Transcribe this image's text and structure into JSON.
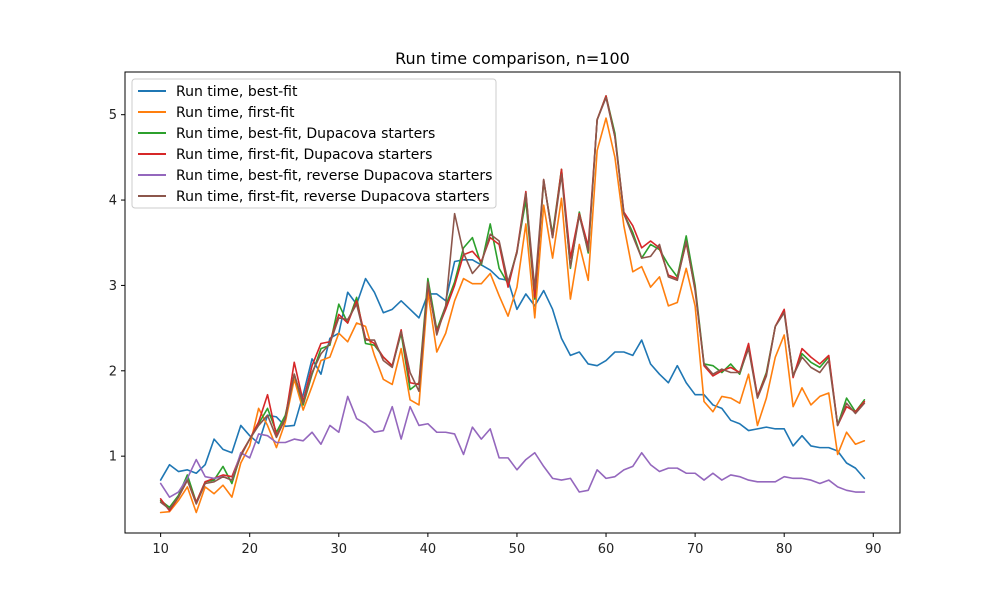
{
  "chart_data": {
    "type": "line",
    "title": "Run time comparison, n=100",
    "xlabel": "",
    "ylabel": "",
    "xlim": [
      6,
      93
    ],
    "ylim": [
      0.1,
      5.5
    ],
    "xticks": [
      10,
      20,
      30,
      40,
      50,
      60,
      70,
      80,
      90
    ],
    "yticks": [
      1,
      2,
      3,
      4,
      5
    ],
    "grid": false,
    "legend_position": "top-left",
    "x": [
      10,
      11,
      12,
      13,
      14,
      15,
      16,
      17,
      18,
      19,
      20,
      21,
      22,
      23,
      24,
      25,
      26,
      27,
      28,
      29,
      30,
      31,
      32,
      33,
      34,
      35,
      36,
      37,
      38,
      39,
      40,
      41,
      42,
      43,
      44,
      45,
      46,
      47,
      48,
      49,
      50,
      51,
      52,
      53,
      54,
      55,
      56,
      57,
      58,
      59,
      60,
      61,
      62,
      63,
      64,
      65,
      66,
      67,
      68,
      69,
      70,
      71,
      72,
      73,
      74,
      75,
      76,
      77,
      78,
      79,
      80,
      81,
      82,
      83,
      84,
      85,
      86,
      87,
      88,
      89
    ],
    "series": [
      {
        "name": "Run time, best-fit",
        "color": "#1f77b4",
        "values": [
          0.72,
          0.9,
          0.82,
          0.84,
          0.8,
          0.9,
          1.2,
          1.08,
          1.04,
          1.36,
          1.24,
          1.15,
          1.48,
          1.46,
          1.35,
          1.36,
          1.72,
          2.14,
          1.96,
          2.38,
          2.44,
          2.92,
          2.78,
          3.08,
          2.92,
          2.68,
          2.72,
          2.82,
          2.72,
          2.62,
          2.9,
          2.9,
          2.82,
          3.28,
          3.3,
          3.3,
          3.24,
          3.18,
          3.08,
          3.06,
          2.72,
          2.9,
          2.76,
          2.94,
          2.72,
          2.38,
          2.18,
          2.22,
          2.08,
          2.06,
          2.12,
          2.22,
          2.22,
          2.18,
          2.36,
          2.08,
          1.96,
          1.86,
          2.06,
          1.86,
          1.72,
          1.72,
          1.6,
          1.56,
          1.42,
          1.38,
          1.3,
          1.32,
          1.34,
          1.32,
          1.32,
          1.12,
          1.24,
          1.12,
          1.1,
          1.1,
          1.06,
          0.92,
          0.86,
          0.74
        ]
      },
      {
        "name": "Run time, first-fit",
        "color": "#ff7f0e",
        "values": [
          0.34,
          0.35,
          0.48,
          0.64,
          0.34,
          0.64,
          0.56,
          0.66,
          0.52,
          0.92,
          1.12,
          1.56,
          1.36,
          1.1,
          1.4,
          1.9,
          1.54,
          1.82,
          2.12,
          2.16,
          2.44,
          2.34,
          2.56,
          2.52,
          2.18,
          1.9,
          1.84,
          2.26,
          1.66,
          1.6,
          2.92,
          2.22,
          2.44,
          2.82,
          3.08,
          3.02,
          3.02,
          3.14,
          2.88,
          2.64,
          2.98,
          3.72,
          2.62,
          3.94,
          3.32,
          4.02,
          2.84,
          3.48,
          3.06,
          4.58,
          4.96,
          4.5,
          3.7,
          3.16,
          3.22,
          2.98,
          3.1,
          2.76,
          2.8,
          3.2,
          2.76,
          1.64,
          1.52,
          1.7,
          1.68,
          1.62,
          1.96,
          1.36,
          1.68,
          2.16,
          2.42,
          1.58,
          1.8,
          1.6,
          1.7,
          1.74,
          1.02,
          1.28,
          1.14,
          1.18
        ]
      },
      {
        "name": "Run time, best-fit, Dupacova starters",
        "color": "#2ca02c",
        "values": [
          0.48,
          0.4,
          0.54,
          0.78,
          0.46,
          0.7,
          0.72,
          0.88,
          0.68,
          1.02,
          1.2,
          1.38,
          1.56,
          1.28,
          1.48,
          1.96,
          1.6,
          1.96,
          2.26,
          2.3,
          2.78,
          2.56,
          2.86,
          2.32,
          2.3,
          2.16,
          2.06,
          2.44,
          1.78,
          1.86,
          3.08,
          2.48,
          2.76,
          3.04,
          3.44,
          3.56,
          3.24,
          3.72,
          3.2,
          3.02,
          3.4,
          4.0,
          2.84,
          4.22,
          3.6,
          4.36,
          3.2,
          3.86,
          3.38,
          4.94,
          5.22,
          4.78,
          3.84,
          3.62,
          3.32,
          3.48,
          3.42,
          3.24,
          3.1,
          3.58,
          3.0,
          2.08,
          2.06,
          1.98,
          2.08,
          1.96,
          2.28,
          1.7,
          1.98,
          2.52,
          2.7,
          1.94,
          2.2,
          2.1,
          2.04,
          2.16,
          1.36,
          1.68,
          1.52,
          1.66
        ]
      },
      {
        "name": "Run time, first-fit, Dupacova starters",
        "color": "#d62728",
        "values": [
          0.5,
          0.36,
          0.52,
          0.72,
          0.46,
          0.7,
          0.74,
          0.78,
          0.76,
          1.02,
          1.2,
          1.4,
          1.72,
          1.24,
          1.44,
          2.1,
          1.64,
          2.06,
          2.32,
          2.34,
          2.66,
          2.56,
          2.82,
          2.38,
          2.32,
          2.16,
          2.06,
          2.48,
          1.86,
          1.84,
          3.0,
          2.46,
          2.72,
          3.0,
          3.36,
          3.4,
          3.28,
          3.56,
          3.48,
          2.98,
          3.4,
          4.1,
          2.86,
          4.24,
          3.56,
          4.36,
          3.32,
          3.84,
          3.46,
          4.94,
          5.22,
          4.74,
          3.86,
          3.7,
          3.44,
          3.52,
          3.44,
          3.12,
          3.08,
          3.5,
          2.96,
          2.06,
          1.94,
          2.0,
          2.04,
          1.98,
          2.32,
          1.7,
          1.96,
          2.52,
          2.72,
          1.92,
          2.26,
          2.16,
          2.08,
          2.18,
          1.36,
          1.58,
          1.52,
          1.64
        ]
      },
      {
        "name": "Run time, best-fit, reverse Dupacova starters",
        "color": "#9467bd",
        "values": [
          0.68,
          0.52,
          0.58,
          0.74,
          0.96,
          0.76,
          0.74,
          0.76,
          0.72,
          1.04,
          0.98,
          1.26,
          1.24,
          1.16,
          1.16,
          1.2,
          1.18,
          1.28,
          1.14,
          1.36,
          1.28,
          1.7,
          1.44,
          1.38,
          1.28,
          1.3,
          1.58,
          1.2,
          1.58,
          1.36,
          1.38,
          1.28,
          1.28,
          1.26,
          1.02,
          1.34,
          1.2,
          1.32,
          0.98,
          0.98,
          0.84,
          0.96,
          1.04,
          0.88,
          0.74,
          0.72,
          0.74,
          0.58,
          0.6,
          0.84,
          0.74,
          0.76,
          0.84,
          0.88,
          1.04,
          0.9,
          0.82,
          0.86,
          0.86,
          0.8,
          0.8,
          0.72,
          0.8,
          0.72,
          0.78,
          0.76,
          0.72,
          0.7,
          0.7,
          0.7,
          0.76,
          0.74,
          0.74,
          0.72,
          0.68,
          0.72,
          0.64,
          0.6,
          0.58,
          0.58
        ]
      },
      {
        "name": "Run time, first-fit, reverse Dupacova starters",
        "color": "#8c564b",
        "values": [
          0.46,
          0.38,
          0.52,
          0.72,
          0.44,
          0.68,
          0.7,
          0.76,
          0.72,
          1.0,
          1.2,
          1.36,
          1.48,
          1.22,
          1.44,
          1.96,
          1.62,
          1.98,
          2.2,
          2.32,
          2.62,
          2.6,
          2.78,
          2.36,
          2.36,
          2.12,
          2.04,
          2.46,
          1.98,
          1.76,
          3.04,
          2.42,
          2.76,
          3.84,
          3.38,
          3.14,
          3.26,
          3.6,
          3.52,
          3.04,
          3.38,
          4.08,
          2.96,
          4.24,
          3.56,
          4.3,
          3.22,
          3.82,
          3.4,
          4.94,
          5.2,
          4.74,
          3.84,
          3.58,
          3.32,
          3.34,
          3.48,
          3.1,
          3.06,
          3.52,
          2.94,
          2.08,
          1.96,
          2.02,
          1.98,
          1.98,
          2.26,
          1.68,
          1.94,
          2.52,
          2.68,
          1.94,
          2.16,
          2.04,
          1.98,
          2.12,
          1.36,
          1.62,
          1.5,
          1.62
        ]
      }
    ]
  }
}
